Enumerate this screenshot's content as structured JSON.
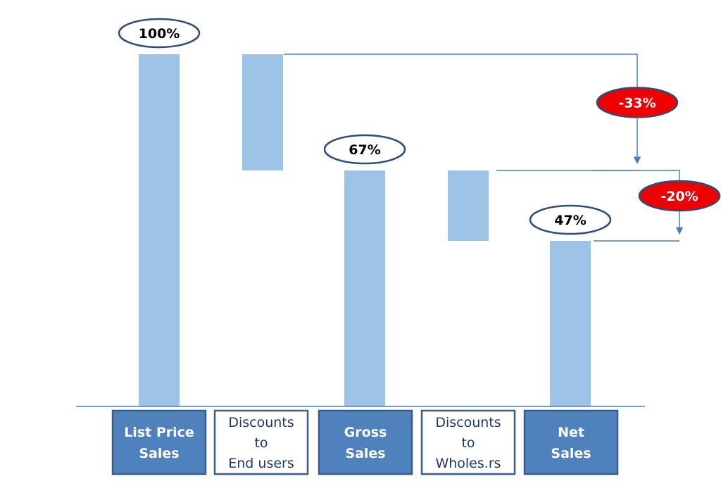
{
  "colors": {
    "bar": "#9dc3e6",
    "axis": "#4a7ebb",
    "connector": "#4a7ebb",
    "label_border": "#2f4d7a",
    "delta_fill": "#ee0000",
    "delta_border": "#2f4d7a",
    "category_box_fill": "#4f81bd",
    "category_box_border": "#385d8a",
    "category_text_light": "#ffffff",
    "category_text_dark": "#1f3864",
    "text_dark": "#000000",
    "text_light": "#ffffff"
  },
  "chart_data": {
    "type": "waterfall",
    "title": "",
    "xlabel": "",
    "ylabel": "",
    "ylim": [
      0,
      100
    ],
    "grid": false,
    "categories": [
      [
        "List Price",
        "Sales"
      ],
      [
        "Discounts",
        "to",
        "End users"
      ],
      [
        "Gross",
        "Sales"
      ],
      [
        "Discounts",
        "to",
        "Wholes.rs"
      ],
      [
        "Net",
        "Sales"
      ]
    ],
    "bars": [
      {
        "kind": "total",
        "start": 0,
        "end": 100,
        "label": "100%"
      },
      {
        "kind": "decrease",
        "start": 100,
        "end": 67,
        "label": ""
      },
      {
        "kind": "total",
        "start": 0,
        "end": 67,
        "label": "67%"
      },
      {
        "kind": "decrease",
        "start": 67,
        "end": 47,
        "label": ""
      },
      {
        "kind": "total",
        "start": 0,
        "end": 47,
        "label": "47%"
      }
    ],
    "category_style": [
      "filled",
      "outline",
      "filled",
      "outline",
      "filled"
    ],
    "changes": [
      {
        "label": "-33%",
        "from": 100,
        "to": 67
      },
      {
        "label": "-20%",
        "from": 67,
        "to": 47
      }
    ]
  }
}
